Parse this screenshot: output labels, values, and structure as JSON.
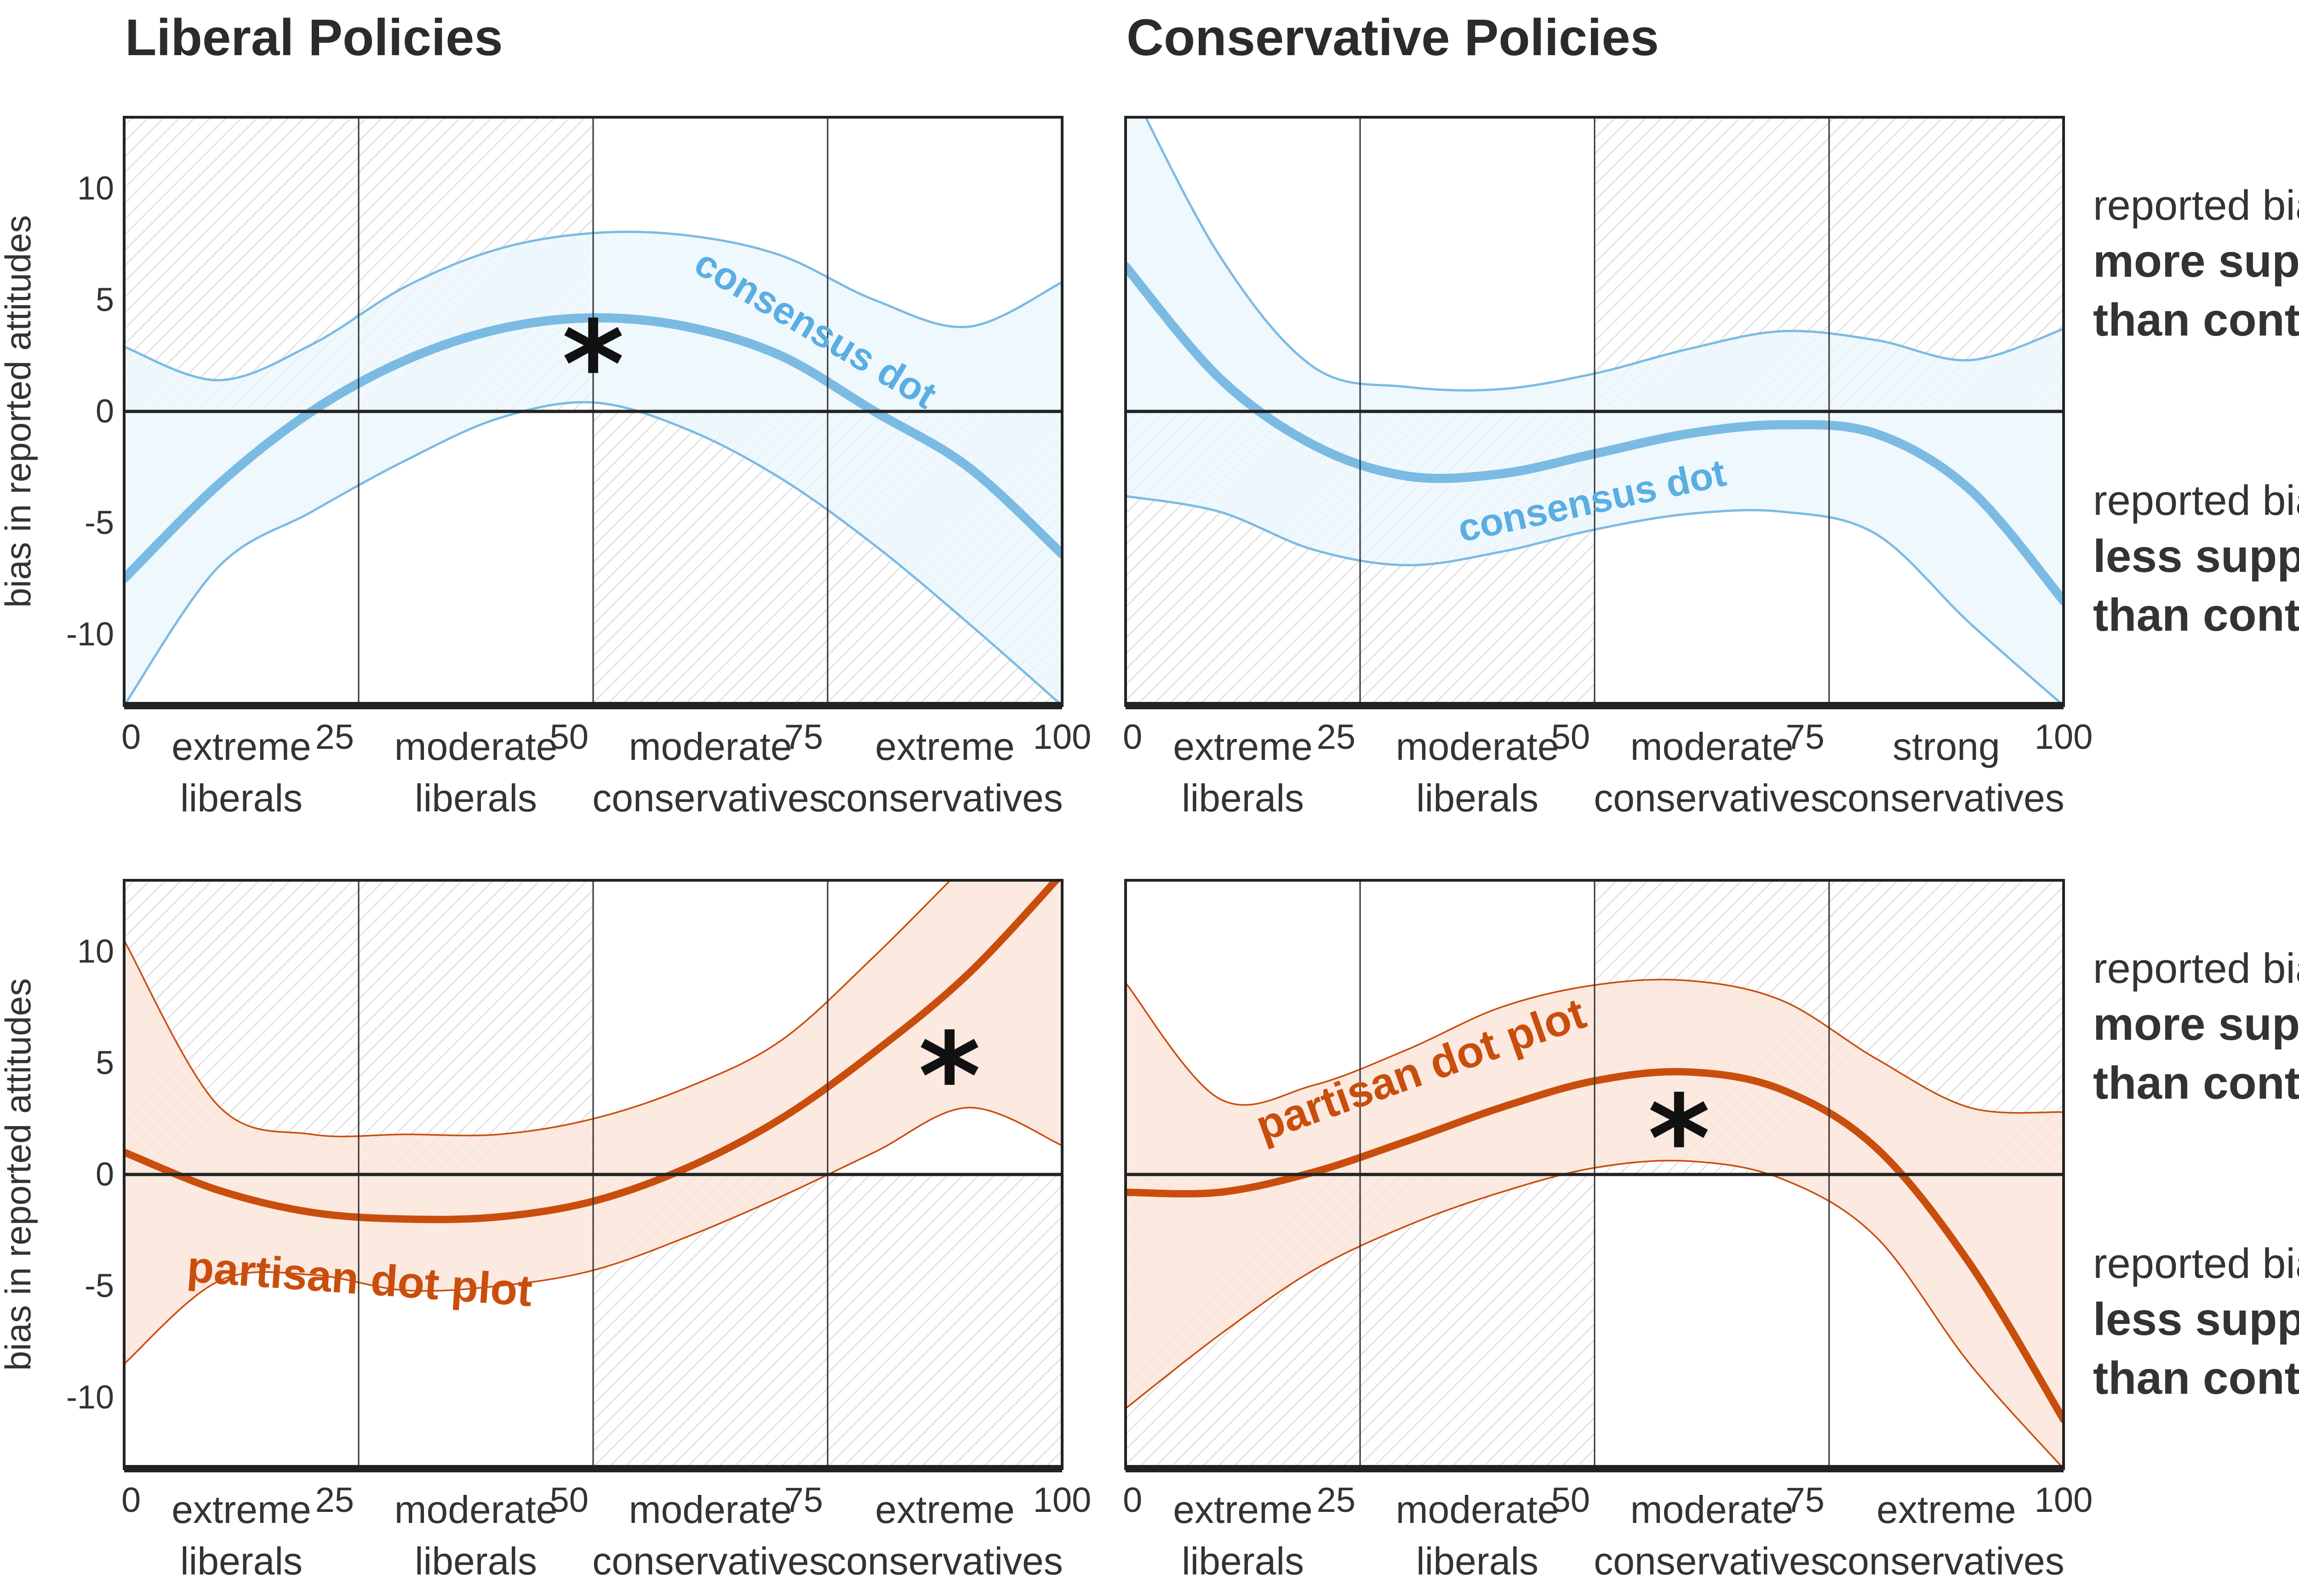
{
  "titles": {
    "left": "Liberal Policies",
    "right": "Conservative Policies"
  },
  "side_labels": {
    "prefix": "reported bias:",
    "more_line1": "more support",
    "more_line2": "than control",
    "less_line1": "less support",
    "less_line2": "than control"
  },
  "colors": {
    "blue_line": "#7bbbe3",
    "blue_fill": "#eaf5fc",
    "blue_text": "#5aaee2",
    "orange_line": "#c94e0d",
    "orange_fill": "#fbe4d8",
    "hatch": "#d2d2d2",
    "axis": "#222222",
    "grid": "#333333"
  },
  "chart_data": [
    {
      "type": "line",
      "panel": "top-left",
      "title": "Liberal Policies",
      "ylabel": "bias in reported attitudes",
      "xlim": [
        0,
        100
      ],
      "ylim": [
        -13.2,
        13.2
      ],
      "xticks": [
        0,
        25,
        50,
        75,
        100
      ],
      "yticks": [
        10,
        5,
        0,
        -5,
        -10
      ],
      "category_labels": [
        [
          "extreme",
          "liberals"
        ],
        [
          "moderate",
          "liberals"
        ],
        [
          "moderate",
          "conservatives"
        ],
        [
          "extreme",
          "conservatives"
        ]
      ],
      "shaded_quadrants": "top-left half, bottom-right half",
      "curve_label": "consensus dot",
      "color": "blue",
      "significant_marker": {
        "text": "*",
        "x": 50,
        "y": 2.5
      },
      "x": [
        0,
        10,
        20,
        30,
        40,
        50,
        60,
        70,
        80,
        90,
        100
      ],
      "estimate": [
        -7.5,
        -3.3,
        0.0,
        2.3,
        3.7,
        4.2,
        3.8,
        2.5,
        0.0,
        -2.5,
        -6.4
      ],
      "lower": [
        -13.2,
        -7.0,
        -4.5,
        -2.2,
        -0.3,
        0.4,
        -0.8,
        -3.0,
        -6.0,
        -9.5,
        -13.2
      ],
      "upper": [
        2.9,
        1.4,
        3.0,
        5.6,
        7.3,
        8.0,
        7.9,
        7.0,
        5.0,
        3.8,
        5.8
      ]
    },
    {
      "type": "line",
      "panel": "top-right",
      "title": "Conservative Policies",
      "ylabel": "",
      "xlim": [
        0,
        100
      ],
      "ylim": [
        -13.2,
        13.2
      ],
      "xticks": [
        0,
        25,
        50,
        75,
        100
      ],
      "yticks": [
        10,
        5,
        0,
        -5,
        -10
      ],
      "category_labels": [
        [
          "extreme",
          "liberals"
        ],
        [
          "moderate",
          "liberals"
        ],
        [
          "moderate",
          "conservatives"
        ],
        [
          "strong",
          "conservatives"
        ]
      ],
      "shaded_quadrants": "top-right half, bottom-left half",
      "curve_label": "consensus dot",
      "color": "blue",
      "x": [
        0,
        10,
        20,
        30,
        40,
        50,
        60,
        70,
        80,
        90,
        100
      ],
      "estimate": [
        6.5,
        1.5,
        -1.5,
        -2.9,
        -2.8,
        -1.9,
        -1.0,
        -0.6,
        -1.0,
        -3.5,
        -8.5
      ],
      "lower": [
        -3.8,
        -4.5,
        -6.2,
        -6.9,
        -6.3,
        -5.3,
        -4.6,
        -4.5,
        -5.5,
        -9.5,
        -13.2
      ],
      "upper": [
        15.0,
        7.0,
        2.0,
        1.1,
        1.0,
        1.7,
        2.8,
        3.6,
        3.2,
        2.3,
        3.7
      ]
    },
    {
      "type": "line",
      "panel": "bottom-left",
      "title": "",
      "ylabel": "bias in reported attitudes",
      "xlim": [
        0,
        100
      ],
      "ylim": [
        -13.2,
        13.2
      ],
      "xticks": [
        0,
        25,
        50,
        75,
        100
      ],
      "yticks": [
        10,
        5,
        0,
        -5,
        -10
      ],
      "category_labels": [
        [
          "extreme",
          "liberals"
        ],
        [
          "moderate",
          "liberals"
        ],
        [
          "moderate",
          "conservatives"
        ],
        [
          "extreme",
          "conservatives"
        ]
      ],
      "shaded_quadrants": "top-left half, bottom-right half",
      "curve_label": "partisan dot plot",
      "color": "orange",
      "significant_marker": {
        "text": "*",
        "x": 88,
        "y": 4.8
      },
      "x": [
        0,
        10,
        20,
        30,
        40,
        50,
        60,
        70,
        80,
        90,
        100
      ],
      "estimate": [
        1.0,
        -0.7,
        -1.7,
        -2.0,
        -1.9,
        -1.2,
        0.3,
        2.5,
        5.5,
        9.0,
        13.5
      ],
      "lower": [
        -8.5,
        -4.8,
        -4.5,
        -5.2,
        -5.0,
        -4.3,
        -2.8,
        -1.0,
        1.0,
        3.0,
        1.3
      ],
      "upper": [
        10.5,
        3.1,
        1.8,
        1.8,
        1.8,
        2.5,
        3.9,
        6.0,
        9.8,
        14.0,
        18.0
      ]
    },
    {
      "type": "line",
      "panel": "bottom-right",
      "title": "",
      "ylabel": "",
      "xlim": [
        0,
        100
      ],
      "ylim": [
        -13.2,
        13.2
      ],
      "xticks": [
        0,
        25,
        50,
        75,
        100
      ],
      "yticks": [
        10,
        5,
        0,
        -5,
        -10
      ],
      "category_labels": [
        [
          "extreme",
          "liberals"
        ],
        [
          "moderate",
          "liberals"
        ],
        [
          "moderate",
          "conservatives"
        ],
        [
          "extreme",
          "conservatives"
        ]
      ],
      "shaded_quadrants": "top-right half, bottom-left half",
      "curve_label": "partisan dot plot",
      "color": "orange",
      "significant_marker": {
        "text": "*",
        "x": 59,
        "y": 2.0
      },
      "x": [
        0,
        10,
        20,
        30,
        40,
        50,
        60,
        70,
        80,
        90,
        100
      ],
      "estimate": [
        -0.8,
        -0.8,
        0.1,
        1.5,
        3.0,
        4.2,
        4.6,
        3.8,
        1.2,
        -4.0,
        -11.0
      ],
      "lower": [
        -10.5,
        -7.2,
        -4.3,
        -2.3,
        -0.8,
        0.3,
        0.6,
        -0.2,
        -2.8,
        -8.5,
        -13.2
      ],
      "upper": [
        8.6,
        3.4,
        4.0,
        5.6,
        7.5,
        8.5,
        8.7,
        7.8,
        5.2,
        3.0,
        2.8
      ]
    }
  ]
}
